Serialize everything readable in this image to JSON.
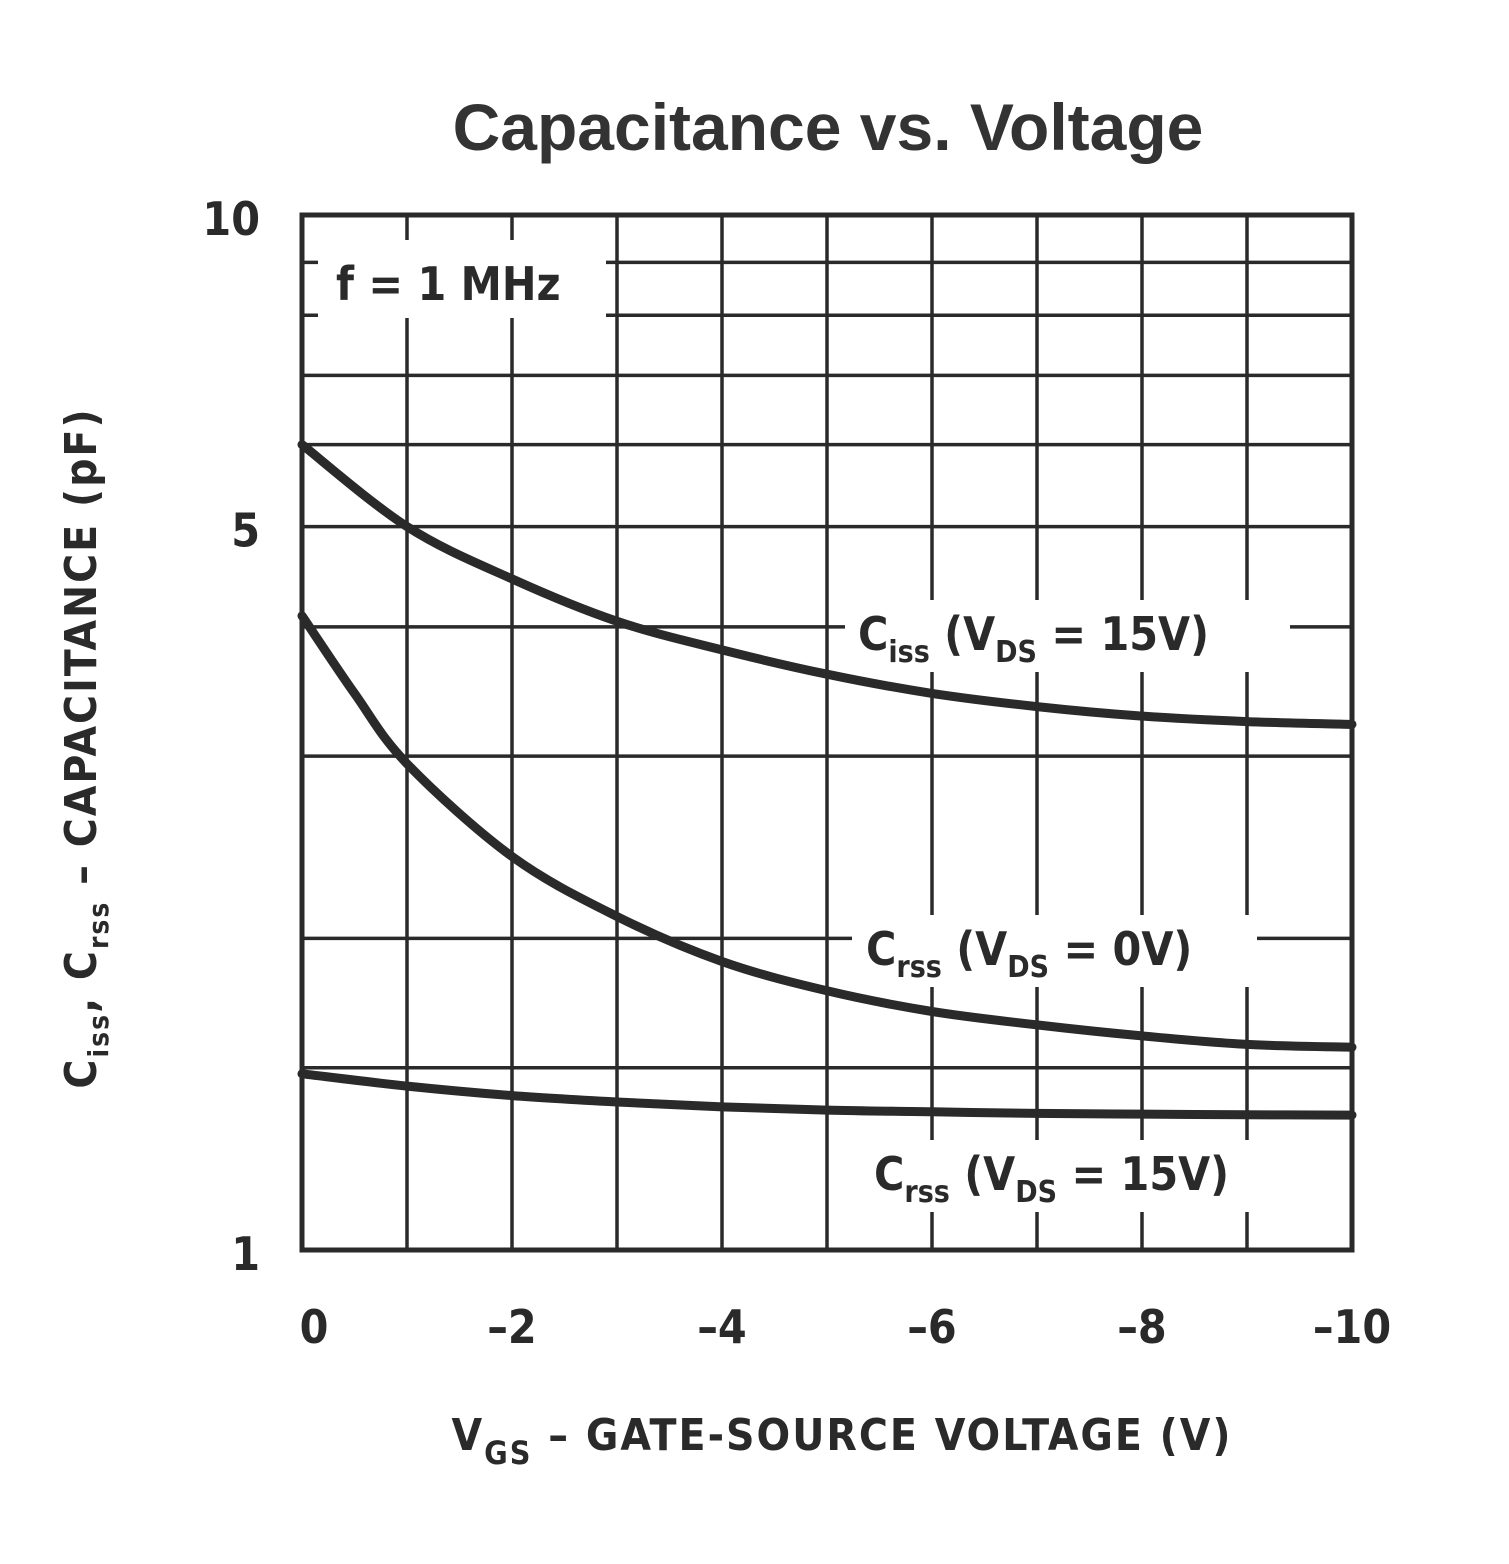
{
  "chart_data": {
    "type": "line",
    "title": "Capacitance vs. Voltage",
    "annotation": "f = 1 MHz",
    "xlabel": {
      "main": "V",
      "sub": "GS",
      "rest": " – GATE-SOURCE VOLTAGE (V)"
    },
    "ylabel": {
      "c1": "C",
      "c1_sub": "iss",
      "sep": ", ",
      "c2": "C",
      "c2_sub": "rss",
      "rest": " – CAPACITANCE (pF)"
    },
    "x_ticks": [
      {
        "value": 0,
        "label": "0"
      },
      {
        "value": -2,
        "label": "–2"
      },
      {
        "value": -4,
        "label": "–4"
      },
      {
        "value": -6,
        "label": "–6"
      },
      {
        "value": -8,
        "label": "–8"
      },
      {
        "value": -10,
        "label": "–10"
      }
    ],
    "y_ticks": [
      {
        "value": 10,
        "label": "10"
      },
      {
        "value": 5,
        "label": "5"
      },
      {
        "value": 1,
        "label": "1"
      }
    ],
    "xlim": [
      0,
      -10
    ],
    "ylim": [
      1,
      10
    ],
    "y_scale": "log",
    "grid": true,
    "x_grid": [
      0,
      -1,
      -2,
      -3,
      -4,
      -5,
      -6,
      -7,
      -8,
      -9,
      -10
    ],
    "y_grid": [
      1,
      1.5,
      2,
      3,
      4,
      5,
      6,
      7,
      8,
      9,
      10
    ],
    "series": [
      {
        "key": "ciss",
        "label_main": "C",
        "label_sub": "iss",
        "label_open": "(V",
        "label_ds": "DS",
        "label_close": " = 15V)",
        "x": [
          0,
          -1,
          -2,
          -3,
          -4,
          -5,
          -6,
          -7,
          -8,
          -9,
          -10
        ],
        "y": [
          6.0,
          5.0,
          4.45,
          4.05,
          3.8,
          3.6,
          3.45,
          3.35,
          3.28,
          3.24,
          3.22
        ]
      },
      {
        "key": "crss0",
        "label_main": "C",
        "label_sub": "rss",
        "label_open": "(V",
        "label_ds": "DS",
        "label_close": " = 0V)",
        "x": [
          0,
          -0.5,
          -1,
          -2,
          -3,
          -4,
          -5,
          -6,
          -7,
          -8,
          -9,
          -10
        ],
        "y": [
          4.1,
          3.45,
          2.95,
          2.4,
          2.1,
          1.9,
          1.78,
          1.7,
          1.65,
          1.61,
          1.58,
          1.57
        ]
      },
      {
        "key": "crss15",
        "label_main": "C",
        "label_sub": "rss",
        "label_open": "(V",
        "label_ds": "DS",
        "label_close": " = 15V)",
        "x": [
          0,
          -1,
          -2,
          -3,
          -4,
          -5,
          -6,
          -7,
          -8,
          -9,
          -10
        ],
        "y": [
          1.48,
          1.44,
          1.41,
          1.39,
          1.375,
          1.365,
          1.36,
          1.355,
          1.353,
          1.351,
          1.35
        ]
      }
    ]
  }
}
